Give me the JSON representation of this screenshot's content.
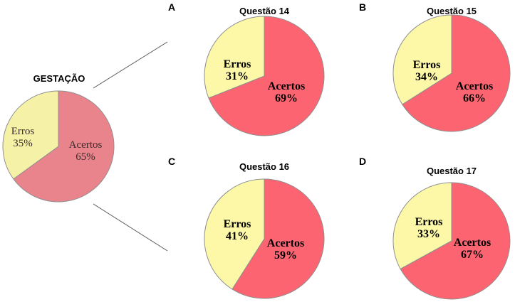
{
  "chart_data": [
    {
      "type": "pie",
      "title": "GESTAÇÃO",
      "panel": "",
      "slices": [
        {
          "label": "Acertos",
          "value": 65,
          "display": "65%"
        },
        {
          "label": "Erros",
          "value": 35,
          "display": "35%"
        }
      ],
      "colors": {
        "Acertos": "#e9848c",
        "Erros": "#f5f2a8"
      }
    },
    {
      "type": "pie",
      "title": "Questão 14",
      "panel": "A",
      "slices": [
        {
          "label": "Acertos",
          "value": 69,
          "display": "69%"
        },
        {
          "label": "Erros",
          "value": 31,
          "display": "31%"
        }
      ],
      "colors": {
        "Acertos": "#fb6470",
        "Erros": "#fdf8a8"
      }
    },
    {
      "type": "pie",
      "title": "Questão 15",
      "panel": "B",
      "slices": [
        {
          "label": "Acertos",
          "value": 66,
          "display": "66%"
        },
        {
          "label": "Erros",
          "value": 34,
          "display": "34%"
        }
      ],
      "colors": {
        "Acertos": "#fb6470",
        "Erros": "#fdf8a8"
      }
    },
    {
      "type": "pie",
      "title": "Questão 16",
      "panel": "C",
      "slices": [
        {
          "label": "Acertos",
          "value": 59,
          "display": "59%"
        },
        {
          "label": "Erros",
          "value": 41,
          "display": "41%"
        }
      ],
      "colors": {
        "Acertos": "#fb6470",
        "Erros": "#fdf8a8"
      }
    },
    {
      "type": "pie",
      "title": "Questão 17",
      "panel": "D",
      "slices": [
        {
          "label": "Acertos",
          "value": 67,
          "display": "67%"
        },
        {
          "label": "Erros",
          "value": 33,
          "display": "33%"
        }
      ],
      "colors": {
        "Acertos": "#fb6470",
        "Erros": "#fdf8a8"
      }
    }
  ]
}
